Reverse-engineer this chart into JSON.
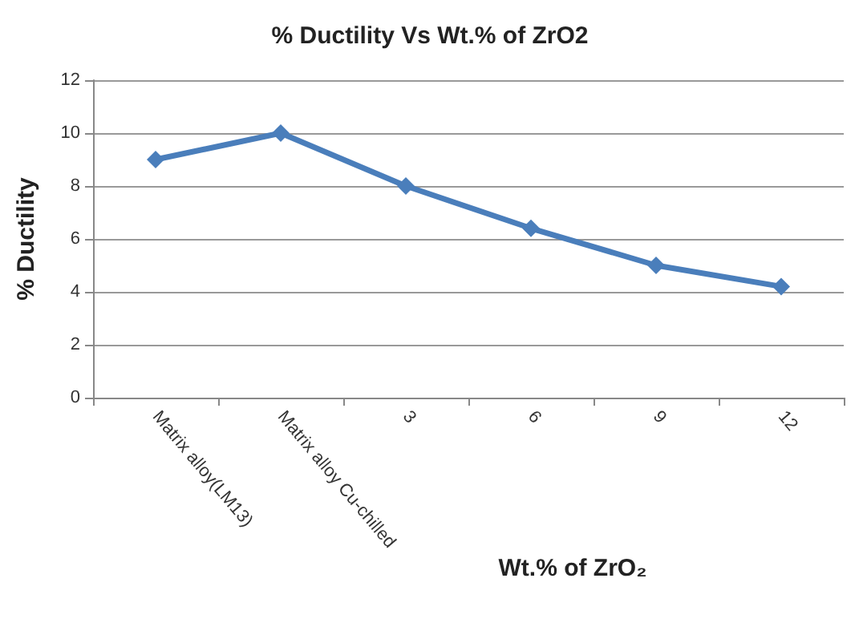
{
  "chart_data": {
    "type": "line",
    "title": "% Ductility Vs Wt.% of ZrO2",
    "xlabel": "Wt.% of ZrO₂",
    "ylabel": "% Ductility",
    "categories": [
      "Matrix alloy(LM13)",
      "Matrix alloy Cu-chilled",
      "3",
      "6",
      "9",
      "12"
    ],
    "series": [
      {
        "color": "#4a7ebb",
        "values": [
          9,
          10,
          8,
          6.4,
          5,
          4.2
        ]
      }
    ],
    "ylim": [
      0,
      12
    ],
    "yticks": [
      0,
      2,
      4,
      6,
      8,
      10,
      12
    ],
    "grid": "y",
    "marker": "diamond",
    "line_style": "solid"
  }
}
